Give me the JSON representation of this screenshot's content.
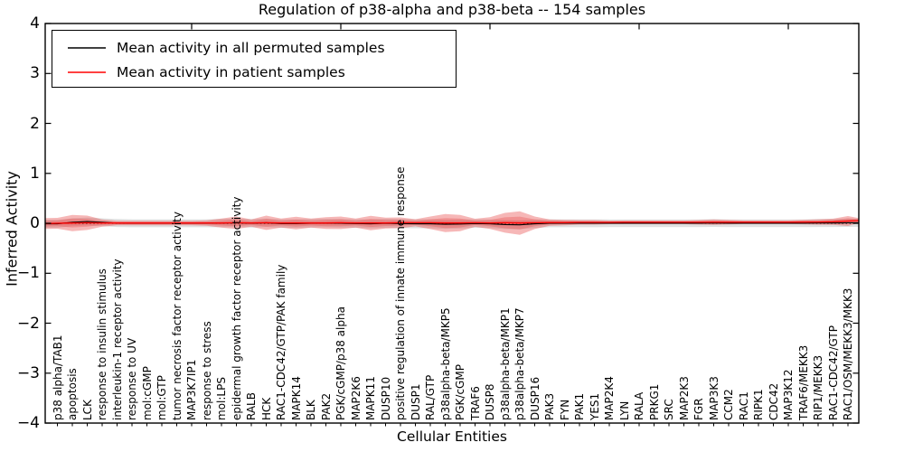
{
  "chart_data": {
    "type": "line",
    "title": "Regulation of p38-alpha and p38-beta -- 154 samples",
    "xlabel": "Cellular Entities",
    "ylabel": "Inferred Activity",
    "ylim": [
      -4,
      4
    ],
    "yticks": [
      4,
      3,
      2,
      1,
      0,
      -1,
      -2,
      -3,
      -4
    ],
    "x_major_ticks": [
      10,
      20,
      30,
      40,
      50
    ],
    "grid": false,
    "legend_position": "upper left",
    "legend": [
      {
        "label": "Mean activity in all permuted samples",
        "color": "#000000"
      },
      {
        "label": "Mean activity in patient samples",
        "color": "#ff0000"
      }
    ],
    "colors": {
      "patient": "#ff0000",
      "permuted": "#000000",
      "patient_band": "#e84c4c",
      "permuted_band": "#909090"
    },
    "zero_line": {
      "value": 0,
      "style": "dotted"
    },
    "edge_left": {
      "patient_mean": -0.005,
      "patient_std": 0.108,
      "permuted_mean": -0.01,
      "permuted_std": 0.08
    },
    "edge_right": {
      "patient_mean": 0.055,
      "patient_std": 0.05,
      "permuted_mean": 0.01,
      "permuted_std": 0.08
    },
    "entities": [
      {
        "label": "p38 alpha/TAB1",
        "patient_mean": 0.0,
        "patient_std": 0.108,
        "permuted_mean": -0.01,
        "permuted_std": 0.08
      },
      {
        "label": "apoptosis",
        "patient_mean": 0.005,
        "patient_std": 0.162,
        "permuted_mean": 0.02,
        "permuted_std": 0.08
      },
      {
        "label": "LCK",
        "patient_mean": 0.01,
        "patient_std": 0.144,
        "permuted_mean": 0.035,
        "permuted_std": 0.08
      },
      {
        "label": "response to insulin stimulus",
        "patient_mean": 0.005,
        "patient_std": 0.072,
        "permuted_mean": 0.02,
        "permuted_std": 0.08
      },
      {
        "label": "interleukin-1 receptor activity",
        "patient_mean": 0.005,
        "patient_std": 0.045,
        "permuted_mean": 0.005,
        "permuted_std": 0.08
      },
      {
        "label": "response to UV",
        "patient_mean": 0.005,
        "patient_std": 0.045,
        "permuted_mean": 0.0,
        "permuted_std": 0.08
      },
      {
        "label": "mol:cGMP",
        "patient_mean": 0.005,
        "patient_std": 0.045,
        "permuted_mean": 0.0,
        "permuted_std": 0.08
      },
      {
        "label": "mol:GTP",
        "patient_mean": 0.005,
        "patient_std": 0.045,
        "permuted_mean": 0.0,
        "permuted_std": 0.08
      },
      {
        "label": "tumor necrosis factor receptor activity",
        "patient_mean": 0.005,
        "patient_std": 0.045,
        "permuted_mean": 0.0,
        "permuted_std": 0.08
      },
      {
        "label": "MAP3K7IP1",
        "patient_mean": 0.005,
        "patient_std": 0.045,
        "permuted_mean": 0.0,
        "permuted_std": 0.08
      },
      {
        "label": "response to stress",
        "patient_mean": 0.005,
        "patient_std": 0.054,
        "permuted_mean": 0.0,
        "permuted_std": 0.08
      },
      {
        "label": "mol:LPS",
        "patient_mean": 0.005,
        "patient_std": 0.09,
        "permuted_mean": 0.005,
        "permuted_std": 0.085
      },
      {
        "label": "epidermal growth factor receptor activity",
        "patient_mean": 0.01,
        "patient_std": 0.126,
        "permuted_mean": 0.01,
        "permuted_std": 0.085
      },
      {
        "label": "RALB",
        "patient_mean": 0.005,
        "patient_std": 0.072,
        "permuted_mean": 0.0,
        "permuted_std": 0.085
      },
      {
        "label": "HCK",
        "patient_mean": 0.01,
        "patient_std": 0.144,
        "permuted_mean": 0.01,
        "permuted_std": 0.085
      },
      {
        "label": "RAC1-CDC42/GTP/PAK family",
        "patient_mean": 0.005,
        "patient_std": 0.09,
        "permuted_mean": -0.005,
        "permuted_std": 0.085
      },
      {
        "label": "MAPK14",
        "patient_mean": 0.005,
        "patient_std": 0.126,
        "permuted_mean": -0.005,
        "permuted_std": 0.085
      },
      {
        "label": "BLK",
        "patient_mean": 0.005,
        "patient_std": 0.09,
        "permuted_mean": 0.0,
        "permuted_std": 0.085
      },
      {
        "label": "PAK2",
        "patient_mean": 0.005,
        "patient_std": 0.117,
        "permuted_mean": 0.005,
        "permuted_std": 0.085
      },
      {
        "label": "PGK/cGMP/p38 alpha",
        "patient_mean": 0.01,
        "patient_std": 0.126,
        "permuted_mean": 0.0,
        "permuted_std": 0.085
      },
      {
        "label": "MAP2K6",
        "patient_mean": 0.005,
        "patient_std": 0.09,
        "permuted_mean": -0.005,
        "permuted_std": 0.085
      },
      {
        "label": "MAPK11",
        "patient_mean": 0.005,
        "patient_std": 0.144,
        "permuted_mean": -0.01,
        "permuted_std": 0.09
      },
      {
        "label": "DUSP10",
        "patient_mean": 0.005,
        "patient_std": 0.108,
        "permuted_mean": 0.0,
        "permuted_std": 0.09
      },
      {
        "label": "positive regulation of innate immune response",
        "patient_mean": 0.01,
        "patient_std": 0.108,
        "permuted_mean": -0.005,
        "permuted_std": 0.09
      },
      {
        "label": "DUSP1",
        "patient_mean": 0.01,
        "patient_std": 0.072,
        "permuted_mean": -0.01,
        "permuted_std": 0.09
      },
      {
        "label": "RAL/GTP",
        "patient_mean": 0.01,
        "patient_std": 0.126,
        "permuted_mean": -0.01,
        "permuted_std": 0.09
      },
      {
        "label": "p38alpha-beta/MKP5",
        "patient_mean": 0.005,
        "patient_std": 0.18,
        "permuted_mean": -0.02,
        "permuted_std": 0.09
      },
      {
        "label": "PGK/cGMP",
        "patient_mean": 0.005,
        "patient_std": 0.162,
        "permuted_mean": -0.015,
        "permuted_std": 0.09
      },
      {
        "label": "TRAF6",
        "patient_mean": 0.01,
        "patient_std": 0.081,
        "permuted_mean": -0.005,
        "permuted_std": 0.085
      },
      {
        "label": "DUSP8",
        "patient_mean": 0.005,
        "patient_std": 0.117,
        "permuted_mean": -0.01,
        "permuted_std": 0.085
      },
      {
        "label": "p38alpha-beta/MKP1",
        "patient_mean": 0.01,
        "patient_std": 0.198,
        "permuted_mean": -0.025,
        "permuted_std": 0.09
      },
      {
        "label": "p38alpha-beta/MKP7",
        "patient_mean": 0.005,
        "patient_std": 0.234,
        "permuted_mean": -0.03,
        "permuted_std": 0.09
      },
      {
        "label": "DUSP16",
        "patient_mean": 0.01,
        "patient_std": 0.126,
        "permuted_mean": -0.01,
        "permuted_std": 0.085
      },
      {
        "label": "PAK3",
        "patient_mean": 0.015,
        "patient_std": 0.063,
        "permuted_mean": 0.0,
        "permuted_std": 0.08
      },
      {
        "label": "FYN",
        "patient_mean": 0.015,
        "patient_std": 0.054,
        "permuted_mean": 0.0,
        "permuted_std": 0.08
      },
      {
        "label": "PAK1",
        "patient_mean": 0.018,
        "patient_std": 0.045,
        "permuted_mean": 0.0,
        "permuted_std": 0.08
      },
      {
        "label": "YES1",
        "patient_mean": 0.018,
        "patient_std": 0.045,
        "permuted_mean": 0.0,
        "permuted_std": 0.08
      },
      {
        "label": "MAP2K4",
        "patient_mean": 0.018,
        "patient_std": 0.036,
        "permuted_mean": 0.0,
        "permuted_std": 0.078
      },
      {
        "label": "LYN",
        "patient_mean": 0.02,
        "patient_std": 0.036,
        "permuted_mean": 0.0,
        "permuted_std": 0.078
      },
      {
        "label": "RALA",
        "patient_mean": 0.02,
        "patient_std": 0.036,
        "permuted_mean": 0.0,
        "permuted_std": 0.078
      },
      {
        "label": "PRKG1",
        "patient_mean": 0.02,
        "patient_std": 0.036,
        "permuted_mean": 0.0,
        "permuted_std": 0.078
      },
      {
        "label": "SRC",
        "patient_mean": 0.02,
        "patient_std": 0.036,
        "permuted_mean": 0.0,
        "permuted_std": 0.078
      },
      {
        "label": "MAP2K3",
        "patient_mean": 0.02,
        "patient_std": 0.036,
        "permuted_mean": 0.0,
        "permuted_std": 0.078
      },
      {
        "label": "FGR",
        "patient_mean": 0.02,
        "patient_std": 0.045,
        "permuted_mean": 0.0,
        "permuted_std": 0.078
      },
      {
        "label": "MAP3K3",
        "patient_mean": 0.022,
        "patient_std": 0.054,
        "permuted_mean": 0.005,
        "permuted_std": 0.078
      },
      {
        "label": "CCM2",
        "patient_mean": 0.022,
        "patient_std": 0.045,
        "permuted_mean": 0.0,
        "permuted_std": 0.078
      },
      {
        "label": "RAC1",
        "patient_mean": 0.022,
        "patient_std": 0.036,
        "permuted_mean": 0.0,
        "permuted_std": 0.078
      },
      {
        "label": "RIPK1",
        "patient_mean": 0.022,
        "patient_std": 0.036,
        "permuted_mean": 0.0,
        "permuted_std": 0.078
      },
      {
        "label": "CDC42",
        "patient_mean": 0.022,
        "patient_std": 0.036,
        "permuted_mean": 0.0,
        "permuted_std": 0.078
      },
      {
        "label": "MAP3K12",
        "patient_mean": 0.022,
        "patient_std": 0.036,
        "permuted_mean": 0.0,
        "permuted_std": 0.078
      },
      {
        "label": "TRAF6/MEKK3",
        "patient_mean": 0.025,
        "patient_std": 0.045,
        "permuted_mean": 0.0,
        "permuted_std": 0.078
      },
      {
        "label": "RIP1/MEKK3",
        "patient_mean": 0.025,
        "patient_std": 0.054,
        "permuted_mean": 0.005,
        "permuted_std": 0.08
      },
      {
        "label": "RAC1-CDC42/GTP",
        "patient_mean": 0.03,
        "patient_std": 0.063,
        "permuted_mean": 0.005,
        "permuted_std": 0.08
      },
      {
        "label": "RAC1/OSM/MEKK3/MKK3",
        "patient_mean": 0.045,
        "patient_std": 0.099,
        "permuted_mean": 0.01,
        "permuted_std": 0.082
      }
    ]
  }
}
